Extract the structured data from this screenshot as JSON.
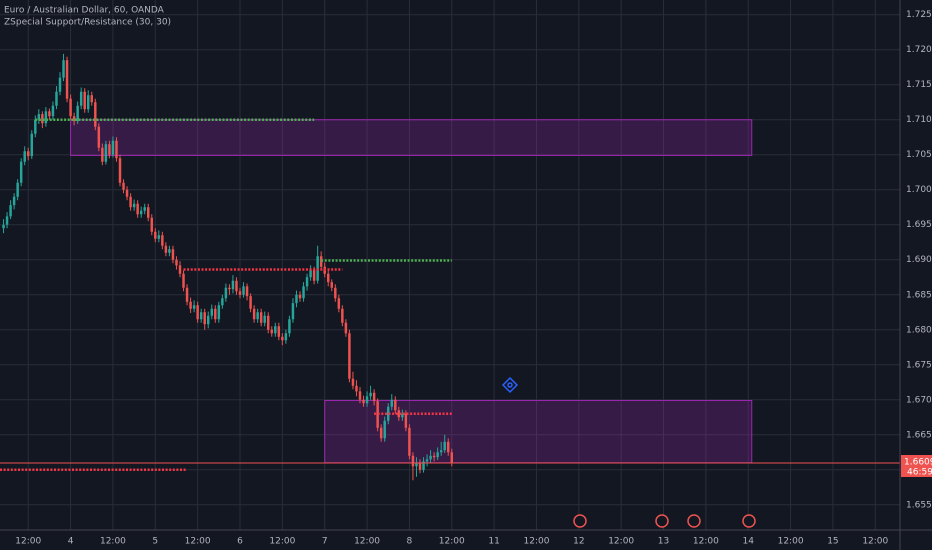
{
  "chart_data": {
    "type": "candlestick",
    "title": "Euro / Australian Dollar, 60, OANDA",
    "subtitle": "ZSpecial Support/Resistance (30, 30)",
    "x": [
      5,
      6,
      7,
      8,
      9,
      10,
      11,
      12,
      13,
      14,
      15,
      16,
      17,
      18,
      19,
      20,
      21,
      22,
      23,
      24,
      25,
      26,
      27,
      28,
      29,
      30,
      31,
      32,
      33,
      34,
      35,
      36,
      37,
      38,
      39,
      40,
      41,
      42,
      43,
      44,
      45,
      46,
      47,
      48,
      49,
      50,
      51,
      52,
      53,
      54,
      55,
      56,
      57,
      58,
      59,
      60,
      61,
      62,
      63,
      64,
      65,
      66,
      67,
      68,
      69,
      70,
      71,
      72,
      73,
      74,
      75,
      76,
      77,
      78,
      79,
      80,
      81,
      82,
      83,
      84,
      85,
      86,
      87,
      88,
      89,
      90,
      91,
      92,
      93,
      94,
      95,
      96,
      97,
      98,
      99,
      100,
      101,
      102,
      103,
      104,
      105,
      106,
      107,
      108,
      109,
      110,
      111,
      112,
      113,
      114,
      115,
      116,
      117,
      118,
      119,
      120,
      121,
      122,
      123,
      124,
      125,
      126,
      127,
      128,
      129,
      130,
      131,
      132
    ],
    "candles": [
      [
        1.6945,
        1.6958,
        1.6938,
        1.695
      ],
      [
        1.695,
        1.6968,
        1.6945,
        1.6962
      ],
      [
        1.6962,
        1.6985,
        1.6958,
        1.6978
      ],
      [
        1.6978,
        1.6995,
        1.6972,
        1.699
      ],
      [
        1.699,
        1.7015,
        1.6985,
        1.701
      ],
      [
        1.701,
        1.7045,
        1.7005,
        1.704
      ],
      [
        1.704,
        1.7062,
        1.7035,
        1.7055
      ],
      [
        1.7055,
        1.706,
        1.7042,
        1.7048
      ],
      [
        1.7048,
        1.7085,
        1.7044,
        1.708
      ],
      [
        1.708,
        1.7106,
        1.7075,
        1.71
      ],
      [
        1.71,
        1.7115,
        1.7094,
        1.7108
      ],
      [
        1.7108,
        1.7112,
        1.7088,
        1.7095
      ],
      [
        1.7095,
        1.7118,
        1.709,
        1.7112
      ],
      [
        1.7112,
        1.7116,
        1.71,
        1.7105
      ],
      [
        1.7105,
        1.7126,
        1.71,
        1.712
      ],
      [
        1.712,
        1.7148,
        1.7115,
        1.714
      ],
      [
        1.714,
        1.7168,
        1.7135,
        1.716
      ],
      [
        1.716,
        1.7194,
        1.7155,
        1.7185
      ],
      [
        1.7185,
        1.719,
        1.7125,
        1.713
      ],
      [
        1.713,
        1.7136,
        1.71,
        1.7105
      ],
      [
        1.7105,
        1.711,
        1.7092,
        1.7098
      ],
      [
        1.7098,
        1.7126,
        1.7094,
        1.712
      ],
      [
        1.712,
        1.7146,
        1.7115,
        1.714
      ],
      [
        1.714,
        1.7145,
        1.711,
        1.7115
      ],
      [
        1.7115,
        1.7142,
        1.711,
        1.7135
      ],
      [
        1.7135,
        1.714,
        1.712,
        1.7125
      ],
      [
        1.7125,
        1.713,
        1.7085,
        1.709
      ],
      [
        1.709,
        1.7095,
        1.7055,
        1.706
      ],
      [
        1.706,
        1.7066,
        1.7035,
        1.704
      ],
      [
        1.704,
        1.707,
        1.7036,
        1.7065
      ],
      [
        1.7065,
        1.707,
        1.7045,
        1.705
      ],
      [
        1.705,
        1.7076,
        1.7046,
        1.707
      ],
      [
        1.707,
        1.7075,
        1.704,
        1.7045
      ],
      [
        1.7045,
        1.705,
        1.7005,
        1.701
      ],
      [
        1.701,
        1.7015,
        1.6995,
        1.7
      ],
      [
        1.7,
        1.7005,
        1.6985,
        1.699
      ],
      [
        1.699,
        1.6995,
        1.697,
        1.6975
      ],
      [
        1.6975,
        1.6986,
        1.697,
        1.698
      ],
      [
        1.698,
        1.6985,
        1.696,
        1.6965
      ],
      [
        1.6965,
        1.6976,
        1.696,
        1.697
      ],
      [
        1.697,
        1.698,
        1.6965,
        1.6975
      ],
      [
        1.6975,
        1.698,
        1.6955,
        1.696
      ],
      [
        1.696,
        1.6965,
        1.6935,
        1.694
      ],
      [
        1.694,
        1.6945,
        1.6925,
        1.693
      ],
      [
        1.693,
        1.6942,
        1.6925,
        1.6935
      ],
      [
        1.6935,
        1.694,
        1.6915,
        1.692
      ],
      [
        1.692,
        1.6925,
        1.6905,
        1.691
      ],
      [
        1.691,
        1.692,
        1.6905,
        1.6915
      ],
      [
        1.6915,
        1.692,
        1.6895,
        1.69
      ],
      [
        1.69,
        1.6905,
        1.6886,
        1.6892
      ],
      [
        1.6892,
        1.6898,
        1.6875,
        1.688
      ],
      [
        1.688,
        1.6885,
        1.6855,
        1.686
      ],
      [
        1.686,
        1.6865,
        1.6835,
        1.684
      ],
      [
        1.684,
        1.6846,
        1.6824,
        1.683
      ],
      [
        1.683,
        1.6842,
        1.6825,
        1.6835
      ],
      [
        1.6835,
        1.684,
        1.681,
        1.6815
      ],
      [
        1.6815,
        1.683,
        1.681,
        1.6825
      ],
      [
        1.6825,
        1.683,
        1.68,
        1.6808
      ],
      [
        1.6808,
        1.6826,
        1.6802,
        1.682
      ],
      [
        1.682,
        1.6836,
        1.6815,
        1.683
      ],
      [
        1.683,
        1.6835,
        1.681,
        1.6815
      ],
      [
        1.6815,
        1.684,
        1.681,
        1.6835
      ],
      [
        1.6835,
        1.685,
        1.683,
        1.6845
      ],
      [
        1.6845,
        1.6866,
        1.684,
        1.686
      ],
      [
        1.686,
        1.6865,
        1.685,
        1.6858
      ],
      [
        1.6858,
        1.6878,
        1.6852,
        1.687
      ],
      [
        1.687,
        1.6875,
        1.685,
        1.6855
      ],
      [
        1.6855,
        1.686,
        1.6845,
        1.685
      ],
      [
        1.685,
        1.6868,
        1.6846,
        1.6862
      ],
      [
        1.6862,
        1.6866,
        1.6842,
        1.6848
      ],
      [
        1.6848,
        1.6852,
        1.6825,
        1.683
      ],
      [
        1.683,
        1.6835,
        1.681,
        1.6815
      ],
      [
        1.6815,
        1.683,
        1.681,
        1.6825
      ],
      [
        1.6825,
        1.683,
        1.6805,
        1.681
      ],
      [
        1.681,
        1.6826,
        1.6805,
        1.682
      ],
      [
        1.682,
        1.6825,
        1.6795,
        1.68
      ],
      [
        1.68,
        1.6805,
        1.679,
        1.6795
      ],
      [
        1.6795,
        1.681,
        1.679,
        1.6805
      ],
      [
        1.6805,
        1.681,
        1.6785,
        1.679
      ],
      [
        1.679,
        1.6795,
        1.6778,
        1.6785
      ],
      [
        1.6785,
        1.68,
        1.678,
        1.6795
      ],
      [
        1.6795,
        1.682,
        1.679,
        1.6815
      ],
      [
        1.6815,
        1.6845,
        1.681,
        1.6838
      ],
      [
        1.6838,
        1.6856,
        1.6832,
        1.685
      ],
      [
        1.685,
        1.6855,
        1.684,
        1.6845
      ],
      [
        1.6845,
        1.6868,
        1.684,
        1.6862
      ],
      [
        1.6862,
        1.688,
        1.6856,
        1.6875
      ],
      [
        1.6875,
        1.6892,
        1.687,
        1.6886
      ],
      [
        1.6886,
        1.689,
        1.6865,
        1.687
      ],
      [
        1.687,
        1.692,
        1.6866,
        1.6905
      ],
      [
        1.6905,
        1.6912,
        1.6885,
        1.689
      ],
      [
        1.689,
        1.6896,
        1.6875,
        1.688
      ],
      [
        1.688,
        1.6885,
        1.6862,
        1.6868
      ],
      [
        1.6868,
        1.6872,
        1.6855,
        1.686
      ],
      [
        1.686,
        1.6865,
        1.684,
        1.6845
      ],
      [
        1.6845,
        1.685,
        1.6825,
        1.683
      ],
      [
        1.683,
        1.6835,
        1.6805,
        1.681
      ],
      [
        1.681,
        1.6815,
        1.679,
        1.6795
      ],
      [
        1.6795,
        1.68,
        1.6725,
        1.673
      ],
      [
        1.673,
        1.674,
        1.6715,
        1.672
      ],
      [
        1.672,
        1.6728,
        1.6705,
        1.6712
      ],
      [
        1.6712,
        1.6718,
        1.6695,
        1.67
      ],
      [
        1.67,
        1.6706,
        1.669,
        1.6695
      ],
      [
        1.6695,
        1.6712,
        1.669,
        1.6705
      ],
      [
        1.6705,
        1.672,
        1.67,
        1.671
      ],
      [
        1.671,
        1.6715,
        1.6692,
        1.6698
      ],
      [
        1.6698,
        1.6702,
        1.6655,
        1.666
      ],
      [
        1.666,
        1.6665,
        1.664,
        1.6645
      ],
      [
        1.6645,
        1.6676,
        1.664,
        1.667
      ],
      [
        1.667,
        1.6695,
        1.6665,
        1.669
      ],
      [
        1.669,
        1.6708,
        1.6685,
        1.67
      ],
      [
        1.67,
        1.6705,
        1.668,
        1.6685
      ],
      [
        1.6685,
        1.669,
        1.667,
        1.6675
      ],
      [
        1.6675,
        1.6686,
        1.667,
        1.668
      ],
      [
        1.668,
        1.6685,
        1.6655,
        1.666
      ],
      [
        1.666,
        1.6665,
        1.6615,
        1.662
      ],
      [
        1.662,
        1.6625,
        1.6585,
        1.6605
      ],
      [
        1.6605,
        1.6618,
        1.659,
        1.661
      ],
      [
        1.661,
        1.6615,
        1.6595,
        1.66
      ],
      [
        1.66,
        1.6618,
        1.6596,
        1.6612
      ],
      [
        1.6612,
        1.6622,
        1.6605,
        1.6615
      ],
      [
        1.6615,
        1.6628,
        1.661,
        1.662
      ],
      [
        1.662,
        1.6625,
        1.6612,
        1.6618
      ],
      [
        1.6618,
        1.6632,
        1.6614,
        1.6625
      ],
      [
        1.6625,
        1.664,
        1.662,
        1.6628
      ],
      [
        1.6628,
        1.665,
        1.6624,
        1.664
      ],
      [
        1.664,
        1.6645,
        1.662,
        1.6625
      ],
      [
        1.6625,
        1.663,
        1.6605,
        1.66097
      ]
    ],
    "up_color": "#26a69a",
    "down_color": "#ef5350",
    "xlim": [
      4,
      259
    ],
    "xticks": [
      {
        "value": 12,
        "label": "12:00"
      },
      {
        "value": 24,
        "label": "4"
      },
      {
        "value": 36,
        "label": "12:00"
      },
      {
        "value": 48,
        "label": "5"
      },
      {
        "value": 60,
        "label": "12:00"
      },
      {
        "value": 72,
        "label": "6"
      },
      {
        "value": 84,
        "label": "12:00"
      },
      {
        "value": 96,
        "label": "7"
      },
      {
        "value": 108,
        "label": "12:00"
      },
      {
        "value": 120,
        "label": "8"
      },
      {
        "value": 132,
        "label": "12:00"
      },
      {
        "value": 144,
        "label": "11"
      },
      {
        "value": 156,
        "label": "12:00"
      },
      {
        "value": 168,
        "label": "12"
      },
      {
        "value": 180,
        "label": "12:00"
      },
      {
        "value": 192,
        "label": "13"
      },
      {
        "value": 204,
        "label": "12:00"
      },
      {
        "value": 216,
        "label": "14"
      },
      {
        "value": 228,
        "label": "12:00"
      },
      {
        "value": 240,
        "label": "15"
      },
      {
        "value": 252,
        "label": "12:00"
      }
    ],
    "ylim": [
      1.6514,
      1.7271
    ],
    "yticks": [
      {
        "value": 1.725,
        "label": "1.72500"
      },
      {
        "value": 1.72,
        "label": "1.72000"
      },
      {
        "value": 1.715,
        "label": "1.71500"
      },
      {
        "value": 1.71,
        "label": "1.71000"
      },
      {
        "value": 1.705,
        "label": "1.70500"
      },
      {
        "value": 1.7,
        "label": "1.70000"
      },
      {
        "value": 1.695,
        "label": "1.69500"
      },
      {
        "value": 1.69,
        "label": "1.69000"
      },
      {
        "value": 1.685,
        "label": "1.68500"
      },
      {
        "value": 1.68,
        "label": "1.68000"
      },
      {
        "value": 1.675,
        "label": "1.67500"
      },
      {
        "value": 1.67,
        "label": "1.67000"
      },
      {
        "value": 1.665,
        "label": "1.66500"
      },
      {
        "value": 1.66,
        "label": "1.66000"
      },
      {
        "value": 1.655,
        "label": "1.65500"
      }
    ],
    "grid": true,
    "zones": [
      {
        "t": [
          24,
          217
        ],
        "price": [
          1.7049,
          1.71
        ],
        "color": "#9c27b0"
      },
      {
        "t": [
          96,
          217
        ],
        "price": [
          1.661,
          1.6699
        ],
        "color": "#9c27b0"
      }
    ],
    "levels": [
      {
        "t": [
          14,
          93
        ],
        "price": 1.71,
        "color": "#4caf50"
      },
      {
        "t": [
          95,
          132
        ],
        "price": 1.6899,
        "color": "#4caf50"
      },
      {
        "t": [
          56,
          101
        ],
        "price": 1.6886,
        "color": "#f23645"
      },
      {
        "t": [
          110,
          132
        ],
        "price": 1.668,
        "color": "#f23645"
      },
      {
        "t": [
          4,
          57
        ],
        "price": 1.66,
        "color": "#f23645"
      }
    ],
    "countdown": "46:59"
  }
}
